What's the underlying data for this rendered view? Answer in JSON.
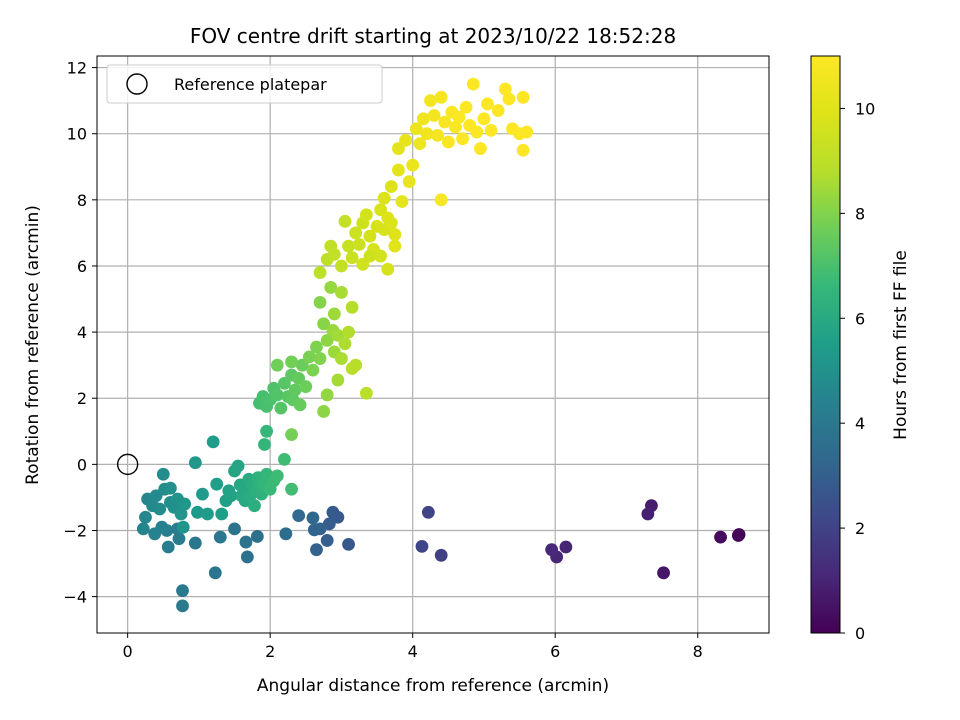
{
  "chart_data": {
    "type": "scatter",
    "title": "FOV centre drift starting at 2023/10/22 18:52:28",
    "xlabel": "Angular distance from reference (arcmin)",
    "ylabel": "Rotation from reference (arcmin)",
    "xlim": [
      -0.43,
      9.0
    ],
    "ylim": [
      -5.1,
      12.35
    ],
    "xticks": [
      0,
      2,
      4,
      6,
      8
    ],
    "yticks": [
      -4,
      -2,
      0,
      2,
      4,
      6,
      8,
      10,
      12
    ],
    "grid": true,
    "legend": {
      "placement": "upper-left",
      "entries": [
        "Reference platepar"
      ]
    },
    "reference_point": {
      "x": 0,
      "y": 0,
      "label": "Reference platepar"
    },
    "colorbar": {
      "label": "Hours from first FF file",
      "colormap": "viridis",
      "range": [
        0,
        11
      ],
      "ticks": [
        0,
        2,
        4,
        6,
        8,
        10
      ]
    },
    "series": [
      {
        "points": [
          [
            8.58,
            -2.12,
            0.1
          ],
          [
            8.57,
            -2.15,
            0.15
          ],
          [
            8.32,
            -2.2,
            0.3
          ],
          [
            7.52,
            -3.28,
            0.6
          ],
          [
            7.35,
            -1.25,
            0.8
          ],
          [
            7.3,
            -1.5,
            0.9
          ],
          [
            6.15,
            -2.5,
            1.0
          ],
          [
            6.02,
            -2.8,
            1.05
          ],
          [
            5.95,
            -2.58,
            1.1
          ],
          [
            4.4,
            -2.75,
            1.9
          ],
          [
            4.22,
            -1.45,
            2.0
          ],
          [
            4.13,
            -2.48,
            2.1
          ],
          [
            3.1,
            -2.42,
            2.7
          ],
          [
            2.95,
            -1.6,
            2.75
          ],
          [
            2.88,
            -1.45,
            2.8
          ],
          [
            2.83,
            -1.8,
            2.9
          ],
          [
            2.8,
            -2.3,
            3.0
          ],
          [
            2.7,
            -1.95,
            3.05
          ],
          [
            2.65,
            -2.58,
            3.1
          ],
          [
            2.62,
            -1.98,
            3.2
          ],
          [
            2.6,
            -1.62,
            3.3
          ],
          [
            2.4,
            -1.55,
            3.4
          ],
          [
            2.22,
            -2.1,
            3.5
          ],
          [
            1.82,
            -2.18,
            3.6
          ],
          [
            1.68,
            -2.8,
            3.7
          ],
          [
            1.66,
            -2.35,
            3.75
          ],
          [
            1.5,
            -1.95,
            3.8
          ],
          [
            1.3,
            -2.2,
            3.85
          ],
          [
            1.23,
            -3.28,
            3.9
          ],
          [
            0.95,
            -2.38,
            3.95
          ],
          [
            0.77,
            -3.82,
            4.0
          ],
          [
            0.77,
            -4.28,
            4.05
          ],
          [
            0.72,
            -2.25,
            4.1
          ],
          [
            0.7,
            -1.95,
            4.15
          ],
          [
            0.57,
            -2.5,
            4.2
          ],
          [
            0.55,
            -2.0,
            4.25
          ],
          [
            0.48,
            -1.9,
            4.3
          ],
          [
            0.38,
            -2.1,
            4.4
          ],
          [
            0.22,
            -1.95,
            4.5
          ],
          [
            0.25,
            -1.6,
            4.55
          ],
          [
            0.28,
            -1.05,
            4.6
          ],
          [
            0.35,
            -1.25,
            4.65
          ],
          [
            0.4,
            -0.95,
            4.7
          ],
          [
            0.45,
            -1.35,
            4.75
          ],
          [
            0.5,
            -0.3,
            4.8
          ],
          [
            0.52,
            -0.75,
            4.85
          ],
          [
            0.6,
            -1.15,
            4.9
          ],
          [
            0.6,
            -0.72,
            4.95
          ],
          [
            0.65,
            -1.3,
            5.0
          ],
          [
            0.7,
            -1.05,
            5.05
          ],
          [
            0.75,
            -1.5,
            5.1
          ],
          [
            0.78,
            -1.9,
            5.15
          ],
          [
            0.8,
            -1.2,
            5.2
          ],
          [
            0.95,
            0.05,
            5.25
          ],
          [
            0.98,
            -1.45,
            5.3
          ],
          [
            1.05,
            -0.9,
            5.35
          ],
          [
            1.12,
            -1.5,
            5.4
          ],
          [
            1.2,
            0.68,
            5.45
          ],
          [
            1.25,
            -0.6,
            5.5
          ],
          [
            1.32,
            -1.5,
            5.55
          ],
          [
            1.38,
            -1.1,
            5.6
          ],
          [
            1.42,
            -0.8,
            5.65
          ],
          [
            1.45,
            -0.95,
            5.7
          ],
          [
            1.5,
            -0.2,
            5.75
          ],
          [
            1.55,
            -0.05,
            5.8
          ],
          [
            1.58,
            -0.62,
            5.85
          ],
          [
            1.6,
            -0.95,
            5.9
          ],
          [
            1.62,
            -0.7,
            5.95
          ],
          [
            1.65,
            -1.1,
            6.0
          ],
          [
            1.7,
            -0.45,
            6.05
          ],
          [
            1.72,
            -0.95,
            6.1
          ],
          [
            1.75,
            -0.6,
            6.15
          ],
          [
            1.78,
            -1.25,
            6.2
          ],
          [
            1.8,
            -0.8,
            6.25
          ],
          [
            1.83,
            -0.4,
            6.3
          ],
          [
            1.85,
            -0.55,
            6.35
          ],
          [
            1.88,
            -0.9,
            6.4
          ],
          [
            1.9,
            -0.62,
            6.45
          ],
          [
            1.92,
            0.6,
            6.5
          ],
          [
            1.95,
            -0.3,
            6.55
          ],
          [
            1.95,
            1.0,
            6.6
          ],
          [
            2.0,
            -0.75,
            6.65
          ],
          [
            2.05,
            -0.5,
            6.7
          ],
          [
            2.1,
            -0.35,
            6.75
          ],
          [
            2.2,
            0.15,
            6.8
          ],
          [
            2.3,
            -0.75,
            6.85
          ],
          [
            1.85,
            1.85,
            6.9
          ],
          [
            1.9,
            2.05,
            6.95
          ],
          [
            1.95,
            1.75,
            7.0
          ],
          [
            2.0,
            1.95,
            7.05
          ],
          [
            2.05,
            2.3,
            7.1
          ],
          [
            2.1,
            2.1,
            7.15
          ],
          [
            2.15,
            1.7,
            7.2
          ],
          [
            2.2,
            2.45,
            7.25
          ],
          [
            2.25,
            2.05,
            7.3
          ],
          [
            2.3,
            2.7,
            7.35
          ],
          [
            2.32,
            1.95,
            7.4
          ],
          [
            2.35,
            2.25,
            7.45
          ],
          [
            2.4,
            2.6,
            7.5
          ],
          [
            2.42,
            1.8,
            7.55
          ],
          [
            2.45,
            3.0,
            7.6
          ],
          [
            2.5,
            2.35,
            7.65
          ],
          [
            2.1,
            3.0,
            7.7
          ],
          [
            2.3,
            3.1,
            7.75
          ],
          [
            2.3,
            0.9,
            7.8
          ],
          [
            2.55,
            3.25,
            7.85
          ],
          [
            2.6,
            2.85,
            7.9
          ],
          [
            2.65,
            3.55,
            7.95
          ],
          [
            2.7,
            3.2,
            8.0
          ],
          [
            2.7,
            4.9,
            8.05
          ],
          [
            2.75,
            4.25,
            8.1
          ],
          [
            2.75,
            1.6,
            8.15
          ],
          [
            2.8,
            3.75,
            8.2
          ],
          [
            2.8,
            2.1,
            8.25
          ],
          [
            2.85,
            5.35,
            8.3
          ],
          [
            2.88,
            4.05,
            8.35
          ],
          [
            2.9,
            3.4,
            8.4
          ],
          [
            2.9,
            4.55,
            8.45
          ],
          [
            2.95,
            3.9,
            8.5
          ],
          [
            2.95,
            2.55,
            8.55
          ],
          [
            3.0,
            5.2,
            8.6
          ],
          [
            3.0,
            3.2,
            8.65
          ],
          [
            3.05,
            3.65,
            8.7
          ],
          [
            3.1,
            4.0,
            8.75
          ],
          [
            3.15,
            4.75,
            8.8
          ],
          [
            3.15,
            2.9,
            8.85
          ],
          [
            3.2,
            3.0,
            8.9
          ],
          [
            3.35,
            2.15,
            8.95
          ],
          [
            2.7,
            5.8,
            9.0
          ],
          [
            2.8,
            6.2,
            9.05
          ],
          [
            2.85,
            6.6,
            9.1
          ],
          [
            2.9,
            6.35,
            9.15
          ],
          [
            3.0,
            6.0,
            9.2
          ],
          [
            3.05,
            7.35,
            9.25
          ],
          [
            3.1,
            6.6,
            9.3
          ],
          [
            3.15,
            6.25,
            9.35
          ],
          [
            3.2,
            7.0,
            9.4
          ],
          [
            3.25,
            6.65,
            9.45
          ],
          [
            3.3,
            7.3,
            9.5
          ],
          [
            3.3,
            6.05,
            9.55
          ],
          [
            3.35,
            7.55,
            9.6
          ],
          [
            3.4,
            6.9,
            9.65
          ],
          [
            3.45,
            6.5,
            9.7
          ],
          [
            3.5,
            7.2,
            9.75
          ],
          [
            3.55,
            7.7,
            9.8
          ],
          [
            3.6,
            8.05,
            9.85
          ],
          [
            3.65,
            7.45,
            9.9
          ],
          [
            3.7,
            8.4,
            9.95
          ],
          [
            3.75,
            6.95,
            10.0
          ],
          [
            3.75,
            6.6,
            10.05
          ],
          [
            3.8,
            8.9,
            10.1
          ],
          [
            3.8,
            9.55,
            10.15
          ],
          [
            3.85,
            7.95,
            10.2
          ],
          [
            3.9,
            9.8,
            10.25
          ],
          [
            3.95,
            8.55,
            10.3
          ],
          [
            4.0,
            9.05,
            10.35
          ],
          [
            4.05,
            10.15,
            10.4
          ],
          [
            4.1,
            9.7,
            10.45
          ],
          [
            4.15,
            10.45,
            10.5
          ],
          [
            4.2,
            10.0,
            10.55
          ],
          [
            4.25,
            11.0,
            10.6
          ],
          [
            4.3,
            10.55,
            10.65
          ],
          [
            4.35,
            9.95,
            10.7
          ],
          [
            4.4,
            11.1,
            10.75
          ],
          [
            4.4,
            8.0,
            10.8
          ],
          [
            4.45,
            10.35,
            10.82
          ],
          [
            4.5,
            9.75,
            10.85
          ],
          [
            4.55,
            10.65,
            10.87
          ],
          [
            4.6,
            10.2,
            10.9
          ],
          [
            4.65,
            10.5,
            10.92
          ],
          [
            4.7,
            9.85,
            10.94
          ],
          [
            4.75,
            10.8,
            10.95
          ],
          [
            4.8,
            10.25,
            10.96
          ],
          [
            4.85,
            11.5,
            10.97
          ],
          [
            4.9,
            10.05,
            10.98
          ],
          [
            4.95,
            9.55,
            10.99
          ],
          [
            5.0,
            10.45,
            11.0
          ],
          [
            5.05,
            10.9,
            11.0
          ],
          [
            5.1,
            10.1,
            11.0
          ],
          [
            5.2,
            10.7,
            11.0
          ],
          [
            5.3,
            11.35,
            11.0
          ],
          [
            5.35,
            11.05,
            11.0
          ],
          [
            5.4,
            10.15,
            11.0
          ],
          [
            5.5,
            10.0,
            11.0
          ],
          [
            5.55,
            11.1,
            11.0
          ],
          [
            5.55,
            9.5,
            11.0
          ],
          [
            5.6,
            10.05,
            11.0
          ],
          [
            3.55,
            6.3,
            9.6
          ],
          [
            3.6,
            7.1,
            9.7
          ],
          [
            3.65,
            5.9,
            9.75
          ],
          [
            3.7,
            7.3,
            9.85
          ],
          [
            3.4,
            6.3,
            9.5
          ]
        ]
      }
    ]
  }
}
